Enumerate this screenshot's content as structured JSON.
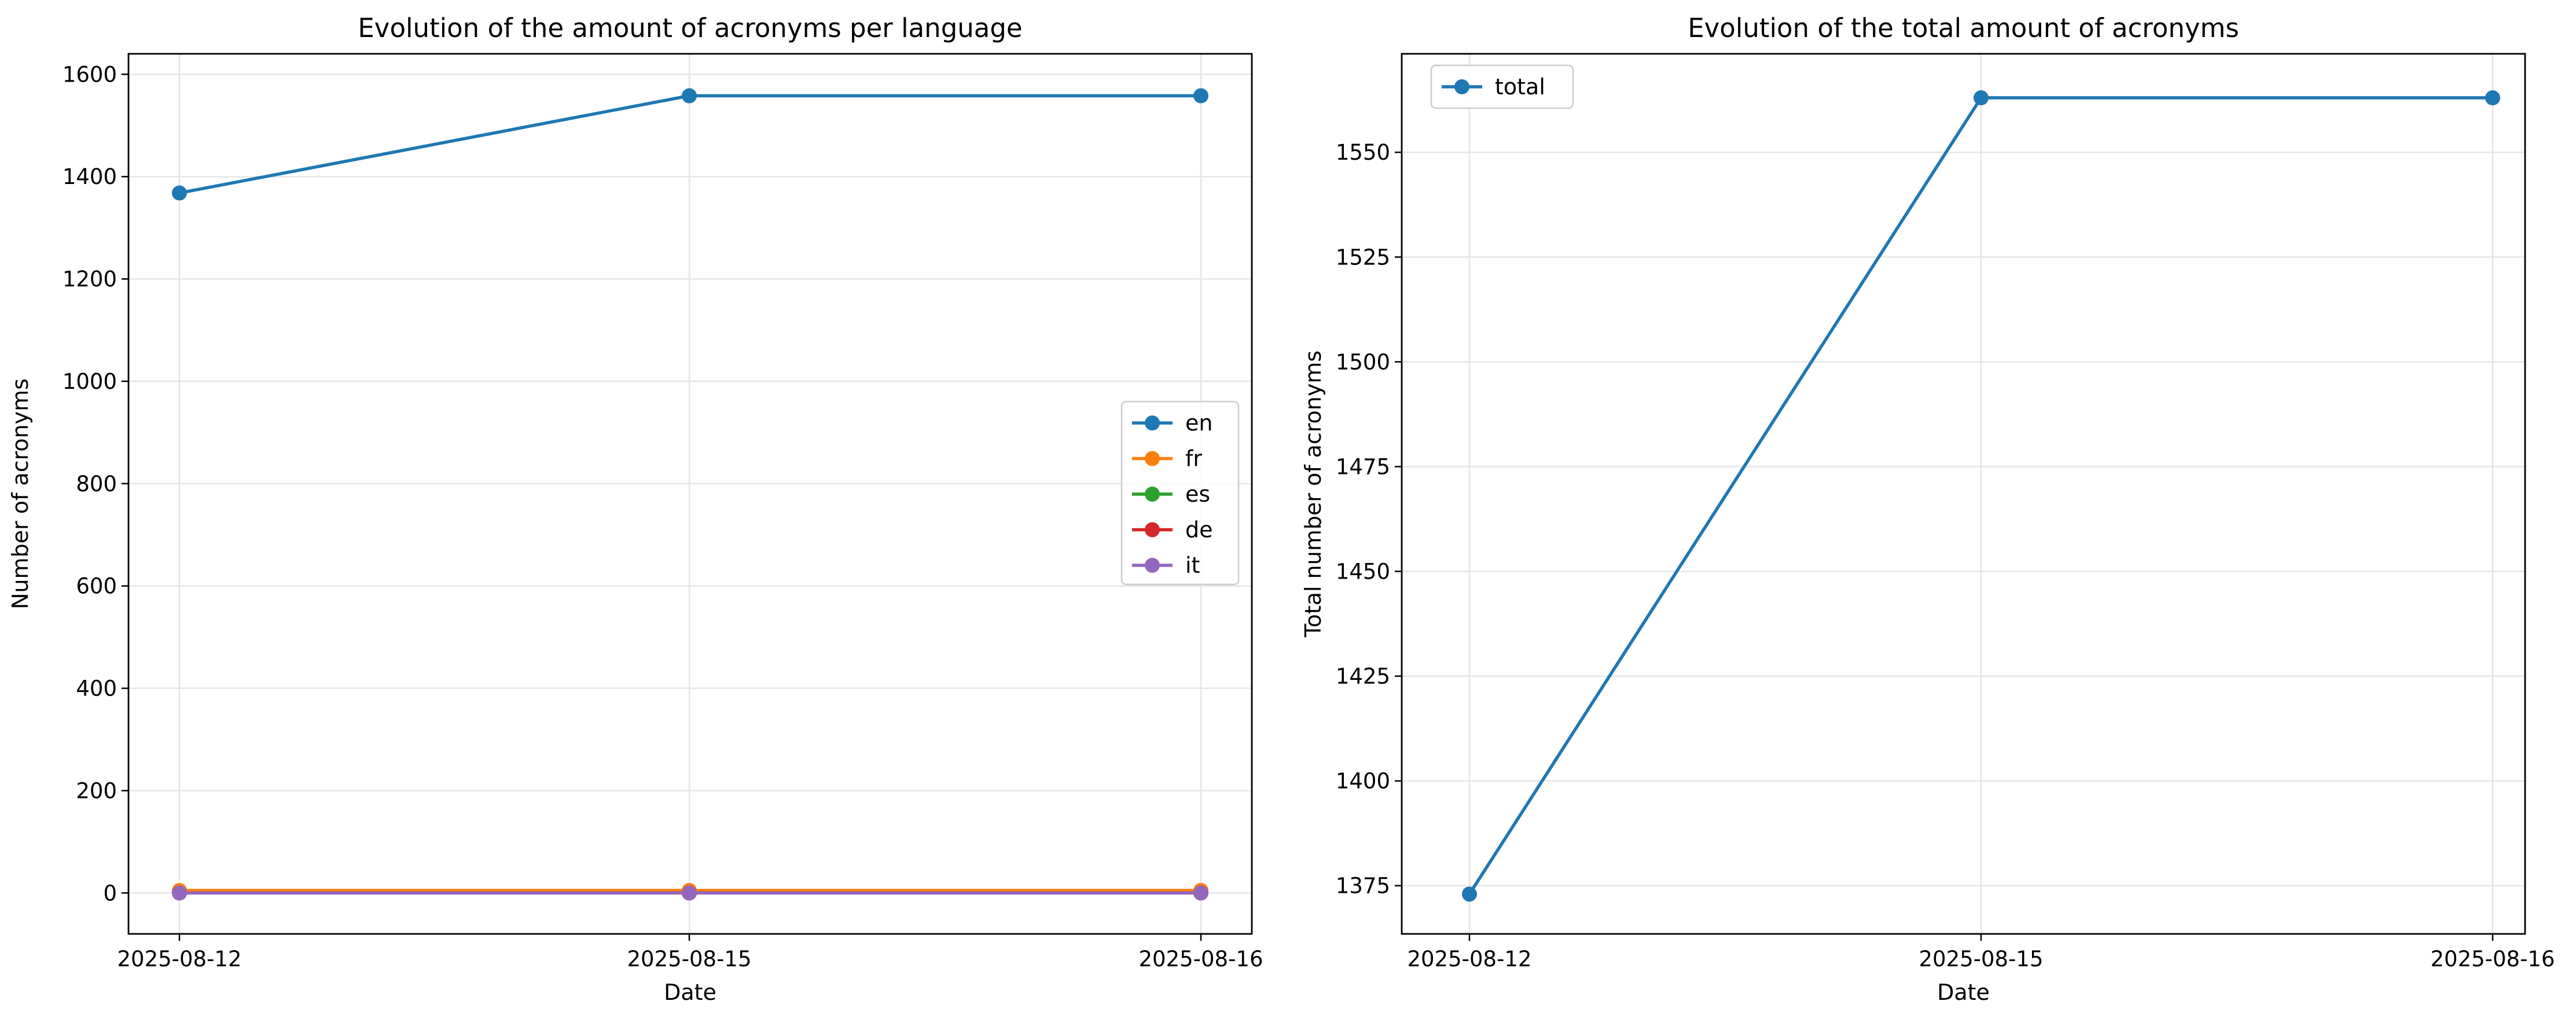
{
  "chart_data": [
    {
      "type": "line",
      "title": "Evolution of the amount of acronyms per language",
      "xlabel": "Date",
      "ylabel": "Number of acronyms",
      "x": [
        "2025-08-12",
        "2025-08-15",
        "2025-08-16"
      ],
      "ylim": [
        -80,
        1640
      ],
      "yticks": [
        0,
        200,
        400,
        600,
        800,
        1000,
        1200,
        1400,
        1600
      ],
      "grid": true,
      "legend_placement": "center-right",
      "series": [
        {
          "name": "en",
          "color": "#1f77b4",
          "values": [
            1368,
            1558,
            1558
          ]
        },
        {
          "name": "fr",
          "color": "#ff7f0e",
          "values": [
            5,
            5,
            5
          ]
        },
        {
          "name": "es",
          "color": "#2ca02c",
          "values": [
            0,
            0,
            0
          ]
        },
        {
          "name": "de",
          "color": "#d62728",
          "values": [
            0,
            0,
            0
          ]
        },
        {
          "name": "it",
          "color": "#9467bd",
          "values": [
            0,
            0,
            0
          ]
        }
      ]
    },
    {
      "type": "line",
      "title": "Evolution of the total amount of acronyms",
      "xlabel": "Date",
      "ylabel": "Total number of acronyms",
      "x": [
        "2025-08-12",
        "2025-08-15",
        "2025-08-16"
      ],
      "ylim": [
        1363.5,
        1573.5
      ],
      "yticks": [
        1375,
        1400,
        1425,
        1450,
        1475,
        1500,
        1525,
        1550
      ],
      "grid": true,
      "legend_placement": "upper-left",
      "series": [
        {
          "name": "total",
          "color": "#1f77b4",
          "values": [
            1373,
            1563,
            1563
          ]
        }
      ]
    }
  ]
}
